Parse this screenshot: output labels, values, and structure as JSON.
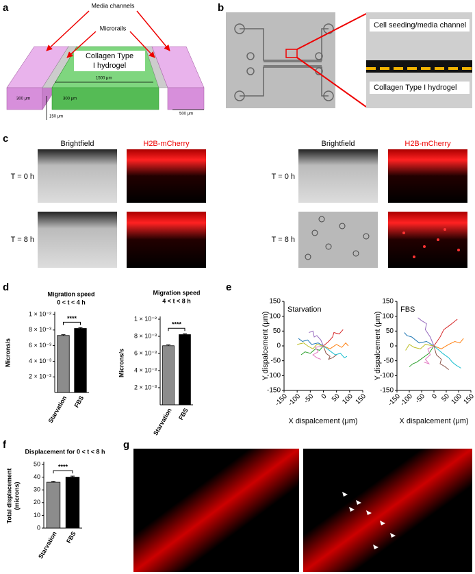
{
  "panel_labels": [
    "a",
    "b",
    "c",
    "d",
    "e",
    "f",
    "g"
  ],
  "a": {
    "media_channels": "Media channels",
    "microrails": "Microrails",
    "hydrogel": [
      "Collagen Type",
      "I hydrogel"
    ],
    "dimensions": [
      "300 μm",
      "1500 μm",
      "300 μm",
      "150 μm",
      "500 μm"
    ]
  },
  "b": {
    "top": "Cell seeding/media channel",
    "bottom": "Collagen Type I hydrogel"
  },
  "c": {
    "headers": [
      "Brightfield",
      "H2B-mCherry",
      "Brightfield",
      "H2B-mCherry"
    ],
    "rows": [
      "T = 0 h",
      "T = 8 h",
      "T = 0 h",
      "T = 8 h"
    ]
  },
  "chart_data": [
    {
      "type": "bar",
      "title": "Migration speed",
      "subtitle": "0 < t < 4 h",
      "ylabel": "Microns/s",
      "categories": [
        "Starvation",
        "FBS"
      ],
      "values": [
        0.0073,
        0.0082
      ],
      "errors": [
        0.0001,
        0.0001
      ],
      "colors": [
        "#8c8c8c",
        "#000000"
      ],
      "annotation": "****",
      "ylim": [
        0,
        0.01
      ],
      "yticks": [
        {
          "value": 0.002,
          "label": "2 × 10⁻³"
        },
        {
          "value": 0.004,
          "label": "4 × 10⁻³"
        },
        {
          "value": 0.006,
          "label": "6 × 10⁻³"
        },
        {
          "value": 0.008,
          "label": "8 × 10⁻³"
        },
        {
          "value": 0.01,
          "label": "1 × 10⁻²"
        }
      ]
    },
    {
      "type": "bar",
      "title": "Migration speed",
      "subtitle": "4 < t < 8 h",
      "ylabel": "Microns/s",
      "categories": [
        "Starvation",
        "FBS"
      ],
      "values": [
        0.0069,
        0.0082
      ],
      "errors": [
        0.0001,
        0.0001
      ],
      "colors": [
        "#8c8c8c",
        "#000000"
      ],
      "annotation": "****",
      "ylim": [
        0,
        0.01
      ],
      "yticks": [
        {
          "value": 0.002,
          "label": "2 × 10⁻³"
        },
        {
          "value": 0.004,
          "label": "4 × 10⁻³"
        },
        {
          "value": 0.006,
          "label": "6 × 10⁻³"
        },
        {
          "value": 0.008,
          "label": "8 × 10⁻³"
        },
        {
          "value": 0.01,
          "label": "1 × 10⁻²"
        }
      ]
    },
    {
      "type": "line",
      "title": "Starvation",
      "xlabel": "X dispalcement (μm)",
      "ylabel": "Y dispalcement (μm)",
      "xlim": [
        -150,
        150
      ],
      "ylim": [
        -150,
        150
      ],
      "xticks": [
        -150,
        -100,
        -50,
        0,
        50,
        100,
        150
      ],
      "yticks": [
        -150,
        -100,
        -50,
        0,
        50,
        100,
        150
      ],
      "series": [
        {
          "color": "#1f77b4",
          "x": [
            0,
            -20,
            -45,
            -60,
            -80,
            -95
          ],
          "values": [
            0,
            10,
            5,
            20,
            15,
            25
          ]
        },
        {
          "color": "#ff7f0e",
          "x": [
            0,
            25,
            50,
            70,
            85,
            95
          ],
          "values": [
            0,
            -10,
            5,
            -5,
            10,
            0
          ]
        },
        {
          "color": "#2ca02c",
          "x": [
            0,
            -15,
            -30,
            -50,
            -70,
            -85
          ],
          "values": [
            0,
            -15,
            -10,
            -25,
            -20,
            -30
          ]
        },
        {
          "color": "#d62728",
          "x": [
            0,
            20,
            35,
            40,
            60,
            75
          ],
          "values": [
            0,
            15,
            30,
            45,
            40,
            55
          ]
        },
        {
          "color": "#9467bd",
          "x": [
            0,
            -10,
            -25,
            -35,
            -40,
            -55
          ],
          "values": [
            0,
            20,
            35,
            30,
            50,
            45
          ]
        },
        {
          "color": "#17becf",
          "x": [
            0,
            30,
            45,
            65,
            80,
            90
          ],
          "values": [
            0,
            -20,
            -30,
            -25,
            -40,
            -35
          ]
        },
        {
          "color": "#bcbd22",
          "x": [
            0,
            -25,
            -40,
            -60,
            -75,
            -100
          ],
          "values": [
            0,
            5,
            -10,
            0,
            10,
            5
          ]
        },
        {
          "color": "#8c564b",
          "x": [
            0,
            10,
            25,
            20,
            35,
            50
          ],
          "values": [
            0,
            -25,
            -35,
            -45,
            -40,
            -30
          ]
        },
        {
          "color": "#e377c2",
          "x": [
            0,
            -30,
            -20,
            -40,
            -25,
            -10
          ],
          "values": [
            0,
            -5,
            -20,
            -30,
            -40,
            -45
          ]
        }
      ]
    },
    {
      "type": "line",
      "title": "FBS",
      "xlabel": "X dispalcement (μm)",
      "ylabel": "Y dispalcement (μm)",
      "xlim": [
        -150,
        150
      ],
      "ylim": [
        -150,
        150
      ],
      "xticks": [
        -150,
        -100,
        -50,
        0,
        50,
        100,
        150
      ],
      "yticks": [
        -150,
        -100,
        -50,
        0,
        50,
        100,
        150
      ],
      "series": [
        {
          "color": "#1f77b4",
          "x": [
            0,
            -30,
            -60,
            -90,
            -110,
            -120
          ],
          "values": [
            0,
            15,
            10,
            30,
            35,
            45
          ]
        },
        {
          "color": "#ff7f0e",
          "x": [
            0,
            30,
            60,
            85,
            105,
            120
          ],
          "values": [
            0,
            -10,
            5,
            15,
            10,
            25
          ]
        },
        {
          "color": "#2ca02c",
          "x": [
            0,
            -20,
            -45,
            -70,
            -85,
            -100
          ],
          "values": [
            0,
            -25,
            -40,
            -55,
            -60,
            -70
          ]
        },
        {
          "color": "#d62728",
          "x": [
            0,
            25,
            40,
            65,
            80,
            95
          ],
          "values": [
            0,
            30,
            55,
            70,
            80,
            90
          ]
        },
        {
          "color": "#9467bd",
          "x": [
            0,
            -15,
            -35,
            -30,
            -50,
            -65
          ],
          "values": [
            0,
            30,
            55,
            75,
            85,
            95
          ]
        },
        {
          "color": "#17becf",
          "x": [
            0,
            35,
            60,
            75,
            90,
            110
          ],
          "values": [
            0,
            -25,
            -40,
            -55,
            -65,
            -75
          ]
        },
        {
          "color": "#bcbd22",
          "x": [
            0,
            -35,
            -55,
            -80,
            -100,
            -115
          ],
          "values": [
            0,
            5,
            -10,
            -5,
            5,
            -15
          ]
        },
        {
          "color": "#8c564b",
          "x": [
            0,
            10,
            30,
            25,
            45,
            60
          ],
          "values": [
            0,
            -30,
            -45,
            -60,
            -70,
            -80
          ]
        },
        {
          "color": "#e377c2",
          "x": [
            0,
            -25,
            -15,
            -35,
            -20,
            -40
          ],
          "values": [
            0,
            -10,
            -30,
            -45,
            -60,
            -55
          ]
        }
      ]
    },
    {
      "type": "bar",
      "title": "Displacement for 0 < t < 8 h",
      "ylabel": [
        "Total displacement",
        "(microns)"
      ],
      "categories": [
        "Starvation",
        "FBS"
      ],
      "values": [
        36,
        40
      ],
      "errors": [
        0.7,
        0.8
      ],
      "colors": [
        "#8c8c8c",
        "#000000"
      ],
      "annotation": "****",
      "ylim": [
        0,
        50
      ],
      "yticks": [
        0,
        10,
        20,
        30,
        40,
        50
      ]
    }
  ]
}
